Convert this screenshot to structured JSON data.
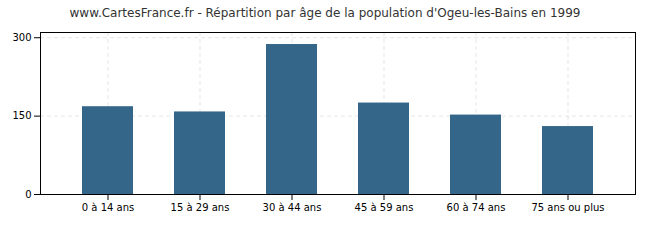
{
  "chart_data": {
    "type": "bar",
    "title": "www.CartesFrance.fr - Répartition par âge de la population d'Ogeu-les-Bains en 1999",
    "categories": [
      "0 à 14 ans",
      "15 à 29 ans",
      "30 à 44 ans",
      "45 à 59 ans",
      "60 à 74 ans",
      "75 ans ou plus"
    ],
    "values": [
      168,
      158,
      287,
      175,
      152,
      130
    ],
    "color": "#34668a",
    "ylim": [
      0,
      310
    ],
    "yticks": [
      0,
      150,
      300
    ],
    "grid": true
  }
}
